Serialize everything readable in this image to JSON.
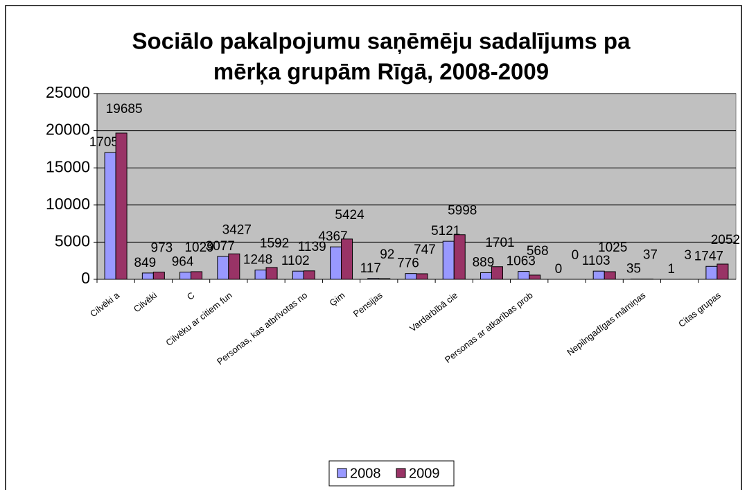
{
  "chart_data": {
    "type": "bar",
    "title": [
      "Sociālo pakalpojumu saņēmēju sadalījums pa",
      "mērķa grupām Rīgā, 2008-2009"
    ],
    "categories": [
      "Cilvēki a",
      "Cilvēki ",
      "C",
      "Cilvēku ar citiem fun",
      null,
      "Personas, kas atbrīvotas no",
      "Ģim",
      "Pensijas ",
      null,
      "Vardarbībā cie",
      null,
      "Personas ar atkarības prob",
      null,
      null,
      "Nepilngadīgas māmiņas",
      null,
      "Citas grupas"
    ],
    "series": [
      {
        "name": "2008",
        "color": "#9999ff",
        "values": [
          17050,
          849,
          964,
          3077,
          1248,
          1102,
          4367,
          117,
          776,
          5121,
          889,
          1063,
          0,
          1103,
          35,
          1,
          1747
        ]
      },
      {
        "name": "2009",
        "color": "#993366",
        "values": [
          19685,
          973,
          1029,
          3427,
          1592,
          1139,
          5424,
          92,
          747,
          5998,
          1701,
          568,
          0,
          1025,
          37,
          3,
          2052
        ]
      }
    ],
    "ylim": [
      0,
      25000
    ],
    "yticks": [
      0,
      5000,
      10000,
      15000,
      20000,
      25000
    ],
    "grid": true,
    "legend": "bottom"
  }
}
